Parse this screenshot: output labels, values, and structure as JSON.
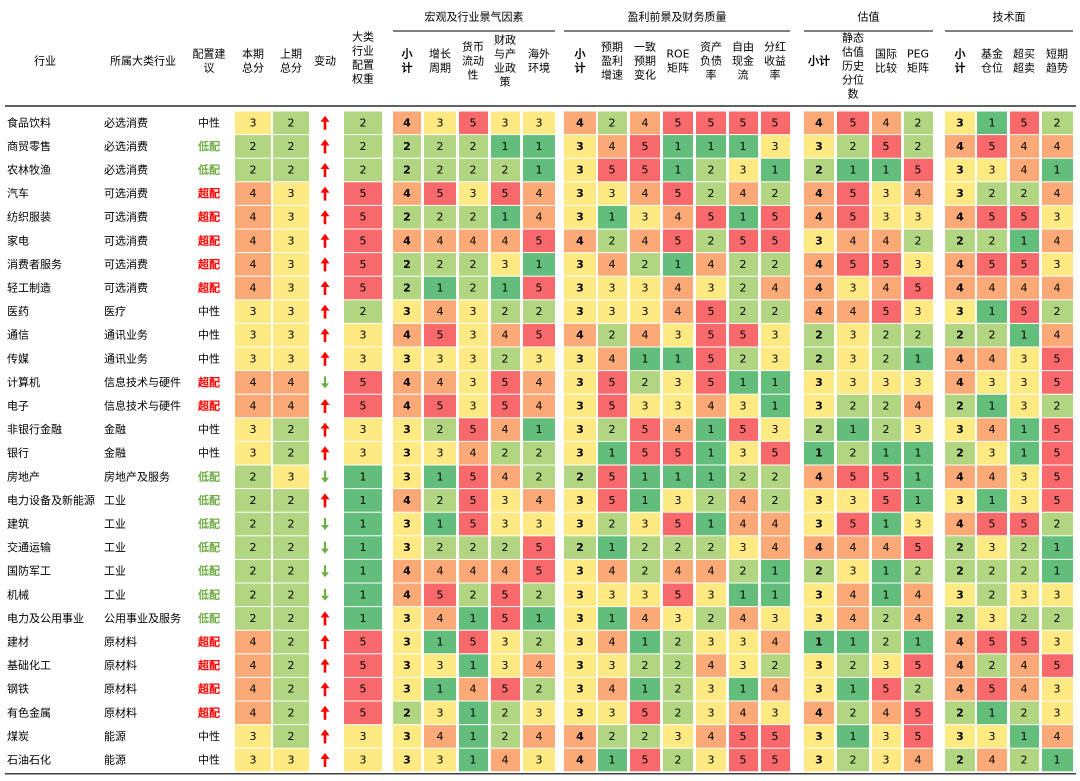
{
  "chart_data": {
    "type": "table",
    "group_headers": [
      "宏观及行业景气因素",
      "盈利前景及财务质量",
      "估值",
      "技术面"
    ],
    "columns": [
      [
        "行业"
      ],
      [
        "所属大类行业"
      ],
      [
        "配置建",
        "议"
      ],
      [
        "本期",
        "总分"
      ],
      [
        "上期",
        "总分"
      ],
      [
        "变动"
      ],
      [
        "大类",
        "行业",
        "配置",
        "权重"
      ],
      [
        "小",
        "计"
      ],
      [
        "增长",
        "周期"
      ],
      [
        "货币",
        "流动",
        "性"
      ],
      [
        "财政",
        "与产",
        "业政",
        "策"
      ],
      [
        "海外",
        "环境"
      ],
      [
        "小",
        "计"
      ],
      [
        "预期",
        "盈利",
        "增速"
      ],
      [
        "一致",
        "预期",
        "变化"
      ],
      [
        "ROE",
        "矩阵"
      ],
      [
        "资产",
        "负债",
        "率"
      ],
      [
        "自由",
        "现金",
        "流"
      ],
      [
        "分红",
        "收益",
        "率"
      ],
      [
        "小计"
      ],
      [
        "静态",
        "估值",
        "历史",
        "分位",
        "数"
      ],
      [
        "国际",
        "比较"
      ],
      [
        "PEG",
        "矩阵"
      ],
      [
        "小",
        "计"
      ],
      [
        "基金",
        "仓位"
      ],
      [
        "超买",
        "超卖"
      ],
      [
        "短期",
        "趋势"
      ]
    ],
    "rows": [
      {
        "industry": "食品饮料",
        "category": "必选消费",
        "rec": "中性",
        "cur": 3,
        "prev": 2,
        "chg": "up",
        "weight": 2,
        "scores": [
          4,
          3,
          5,
          3,
          3,
          4,
          2,
          4,
          5,
          5,
          5,
          5,
          4,
          5,
          4,
          2,
          3,
          1,
          5,
          2
        ]
      },
      {
        "industry": "商贸零售",
        "category": "必选消费",
        "rec": "低配",
        "cur": 2,
        "prev": 2,
        "chg": "up",
        "weight": 2,
        "scores": [
          2,
          2,
          2,
          1,
          1,
          3,
          4,
          5,
          1,
          1,
          1,
          3,
          3,
          2,
          5,
          2,
          4,
          5,
          4,
          4
        ]
      },
      {
        "industry": "农林牧渔",
        "category": "必选消费",
        "rec": "低配",
        "cur": 2,
        "prev": 2,
        "chg": "up",
        "weight": 2,
        "scores": [
          2,
          2,
          2,
          2,
          1,
          3,
          5,
          5,
          1,
          2,
          3,
          1,
          2,
          1,
          1,
          5,
          3,
          3,
          4,
          1
        ]
      },
      {
        "industry": "汽车",
        "category": "可选消费",
        "rec": "超配",
        "cur": 4,
        "prev": 3,
        "chg": "up",
        "weight": 5,
        "scores": [
          4,
          5,
          3,
          5,
          4,
          3,
          3,
          4,
          5,
          2,
          4,
          2,
          4,
          5,
          3,
          4,
          3,
          2,
          2,
          4
        ]
      },
      {
        "industry": "纺织服装",
        "category": "可选消费",
        "rec": "超配",
        "cur": 4,
        "prev": 3,
        "chg": "up",
        "weight": 5,
        "scores": [
          2,
          2,
          2,
          1,
          4,
          3,
          1,
          3,
          4,
          5,
          1,
          5,
          4,
          5,
          3,
          3,
          4,
          5,
          5,
          3
        ]
      },
      {
        "industry": "家电",
        "category": "可选消费",
        "rec": "超配",
        "cur": 4,
        "prev": 3,
        "chg": "up",
        "weight": 5,
        "scores": [
          4,
          4,
          4,
          4,
          5,
          4,
          2,
          4,
          5,
          2,
          5,
          5,
          3,
          4,
          4,
          2,
          2,
          2,
          1,
          4
        ]
      },
      {
        "industry": "消费者服务",
        "category": "可选消费",
        "rec": "超配",
        "cur": 4,
        "prev": 3,
        "chg": "up",
        "weight": 5,
        "scores": [
          2,
          2,
          2,
          3,
          1,
          3,
          4,
          2,
          1,
          4,
          2,
          2,
          4,
          5,
          5,
          3,
          4,
          5,
          5,
          3
        ]
      },
      {
        "industry": "轻工制造",
        "category": "可选消费",
        "rec": "超配",
        "cur": 4,
        "prev": 3,
        "chg": "up",
        "weight": 5,
        "scores": [
          2,
          1,
          2,
          1,
          5,
          3,
          3,
          3,
          4,
          3,
          2,
          4,
          4,
          3,
          4,
          5,
          4,
          4,
          4,
          4
        ]
      },
      {
        "industry": "医药",
        "category": "医疗",
        "rec": "中性",
        "cur": 3,
        "prev": 3,
        "chg": "up",
        "weight": 2,
        "scores": [
          3,
          4,
          3,
          2,
          2,
          3,
          3,
          3,
          4,
          5,
          2,
          2,
          4,
          4,
          5,
          3,
          3,
          1,
          5,
          2
        ]
      },
      {
        "industry": "通信",
        "category": "通讯业务",
        "rec": "中性",
        "cur": 3,
        "prev": 3,
        "chg": "up",
        "weight": 3,
        "scores": [
          4,
          5,
          3,
          4,
          5,
          4,
          2,
          4,
          3,
          5,
          5,
          3,
          2,
          3,
          2,
          2,
          2,
          2,
          1,
          4
        ]
      },
      {
        "industry": "传媒",
        "category": "通讯业务",
        "rec": "中性",
        "cur": 3,
        "prev": 3,
        "chg": "up",
        "weight": 3,
        "scores": [
          3,
          3,
          3,
          2,
          3,
          3,
          4,
          1,
          1,
          5,
          2,
          3,
          2,
          3,
          2,
          1,
          4,
          4,
          3,
          5
        ]
      },
      {
        "industry": "计算机",
        "category": "信息技术与硬件",
        "rec": "超配",
        "cur": 4,
        "prev": 4,
        "chg": "down",
        "weight": 5,
        "scores": [
          4,
          4,
          3,
          5,
          4,
          3,
          5,
          2,
          3,
          5,
          1,
          1,
          3,
          3,
          3,
          3,
          4,
          3,
          3,
          5
        ]
      },
      {
        "industry": "电子",
        "category": "信息技术与硬件",
        "rec": "超配",
        "cur": 4,
        "prev": 4,
        "chg": "up",
        "weight": 5,
        "scores": [
          4,
          5,
          3,
          5,
          4,
          3,
          5,
          3,
          3,
          4,
          3,
          1,
          3,
          2,
          2,
          4,
          2,
          1,
          3,
          2
        ]
      },
      {
        "industry": "非银行金融",
        "category": "金融",
        "rec": "中性",
        "cur": 3,
        "prev": 2,
        "chg": "up",
        "weight": 3,
        "scores": [
          3,
          2,
          5,
          4,
          1,
          3,
          2,
          5,
          4,
          1,
          5,
          3,
          2,
          1,
          2,
          3,
          3,
          4,
          1,
          5
        ]
      },
      {
        "industry": "银行",
        "category": "金融",
        "rec": "中性",
        "cur": 3,
        "prev": 2,
        "chg": "up",
        "weight": 3,
        "scores": [
          3,
          3,
          4,
          2,
          2,
          3,
          1,
          5,
          5,
          1,
          3,
          5,
          1,
          2,
          1,
          1,
          2,
          3,
          1,
          5
        ]
      },
      {
        "industry": "房地产",
        "category": "房地产及服务",
        "rec": "低配",
        "cur": 2,
        "prev": 3,
        "chg": "down",
        "weight": 1,
        "scores": [
          3,
          1,
          5,
          4,
          2,
          2,
          5,
          1,
          1,
          1,
          2,
          2,
          4,
          5,
          5,
          1,
          4,
          4,
          3,
          5
        ]
      },
      {
        "industry": "电力设备及新能源",
        "category": "工业",
        "rec": "低配",
        "cur": 2,
        "prev": 2,
        "chg": "up",
        "weight": 1,
        "scores": [
          4,
          2,
          5,
          3,
          4,
          3,
          5,
          1,
          3,
          2,
          4,
          2,
          3,
          3,
          5,
          1,
          3,
          1,
          3,
          5
        ]
      },
      {
        "industry": "建筑",
        "category": "工业",
        "rec": "低配",
        "cur": 2,
        "prev": 2,
        "chg": "down",
        "weight": 1,
        "scores": [
          3,
          1,
          5,
          3,
          3,
          3,
          2,
          3,
          5,
          1,
          4,
          4,
          3,
          5,
          1,
          3,
          4,
          5,
          5,
          2
        ]
      },
      {
        "industry": "交通运输",
        "category": "工业",
        "rec": "低配",
        "cur": 2,
        "prev": 2,
        "chg": "down",
        "weight": 1,
        "scores": [
          3,
          2,
          2,
          2,
          5,
          2,
          1,
          2,
          2,
          2,
          3,
          4,
          4,
          4,
          4,
          5,
          2,
          3,
          2,
          1
        ]
      },
      {
        "industry": "国防军工",
        "category": "工业",
        "rec": "低配",
        "cur": 2,
        "prev": 2,
        "chg": "down",
        "weight": 1,
        "scores": [
          4,
          4,
          4,
          4,
          5,
          3,
          4,
          2,
          4,
          4,
          2,
          1,
          2,
          3,
          1,
          2,
          2,
          2,
          2,
          1
        ]
      },
      {
        "industry": "机械",
        "category": "工业",
        "rec": "低配",
        "cur": 2,
        "prev": 2,
        "chg": "down",
        "weight": 1,
        "scores": [
          4,
          5,
          2,
          5,
          2,
          3,
          3,
          3,
          5,
          3,
          1,
          1,
          3,
          4,
          1,
          4,
          3,
          2,
          3,
          3
        ]
      },
      {
        "industry": "电力及公用事业",
        "category": "公用事业及服务",
        "rec": "低配",
        "cur": 2,
        "prev": 2,
        "chg": "up",
        "weight": 1,
        "scores": [
          3,
          4,
          1,
          5,
          1,
          3,
          1,
          4,
          3,
          2,
          4,
          3,
          3,
          4,
          2,
          4,
          2,
          3,
          2,
          2
        ]
      },
      {
        "industry": "建材",
        "category": "原材料",
        "rec": "超配",
        "cur": 4,
        "prev": 2,
        "chg": "up",
        "weight": 5,
        "scores": [
          3,
          1,
          5,
          3,
          2,
          3,
          4,
          1,
          2,
          3,
          3,
          4,
          1,
          1,
          2,
          1,
          4,
          5,
          5,
          3
        ]
      },
      {
        "industry": "基础化工",
        "category": "原材料",
        "rec": "超配",
        "cur": 4,
        "prev": 2,
        "chg": "up",
        "weight": 5,
        "scores": [
          3,
          3,
          1,
          3,
          4,
          3,
          3,
          2,
          2,
          4,
          3,
          2,
          3,
          2,
          3,
          5,
          4,
          2,
          4,
          5
        ]
      },
      {
        "industry": "钢铁",
        "category": "原材料",
        "rec": "超配",
        "cur": 4,
        "prev": 2,
        "chg": "up",
        "weight": 5,
        "scores": [
          3,
          1,
          4,
          5,
          2,
          3,
          4,
          1,
          2,
          3,
          1,
          4,
          3,
          1,
          5,
          2,
          4,
          5,
          4,
          3
        ]
      },
      {
        "industry": "有色金属",
        "category": "原材料",
        "rec": "超配",
        "cur": 4,
        "prev": 2,
        "chg": "up",
        "weight": 5,
        "scores": [
          2,
          3,
          1,
          2,
          3,
          3,
          3,
          5,
          2,
          3,
          4,
          3,
          4,
          2,
          4,
          5,
          2,
          1,
          2,
          3
        ]
      },
      {
        "industry": "煤炭",
        "category": "能源",
        "rec": "中性",
        "cur": 3,
        "prev": 2,
        "chg": "up",
        "weight": 3,
        "scores": [
          3,
          4,
          1,
          2,
          4,
          4,
          2,
          2,
          3,
          4,
          5,
          5,
          3,
          1,
          3,
          5,
          3,
          3,
          1,
          4
        ]
      },
      {
        "industry": "石油石化",
        "category": "能源",
        "rec": "中性",
        "cur": 3,
        "prev": 3,
        "chg": "up",
        "weight": 3,
        "scores": [
          3,
          3,
          1,
          4,
          3,
          4,
          1,
          5,
          2,
          3,
          5,
          5,
          3,
          2,
          3,
          4,
          2,
          4,
          2,
          1
        ]
      }
    ],
    "score_colors": {
      "1": "#63be7b",
      "2": "#b1d580",
      "3": "#fee983",
      "4": "#fbaa77",
      "5": "#f8696b"
    },
    "rec_colors": {
      "超配": "#ff0000",
      "低配": "#70ad47",
      "中性": "#000000"
    },
    "arrow_colors": {
      "up": "#ff0000",
      "down": "#70ad47"
    },
    "arrow_icons": {
      "up": "arrow-up-icon",
      "down": "arrow-down-icon"
    }
  }
}
